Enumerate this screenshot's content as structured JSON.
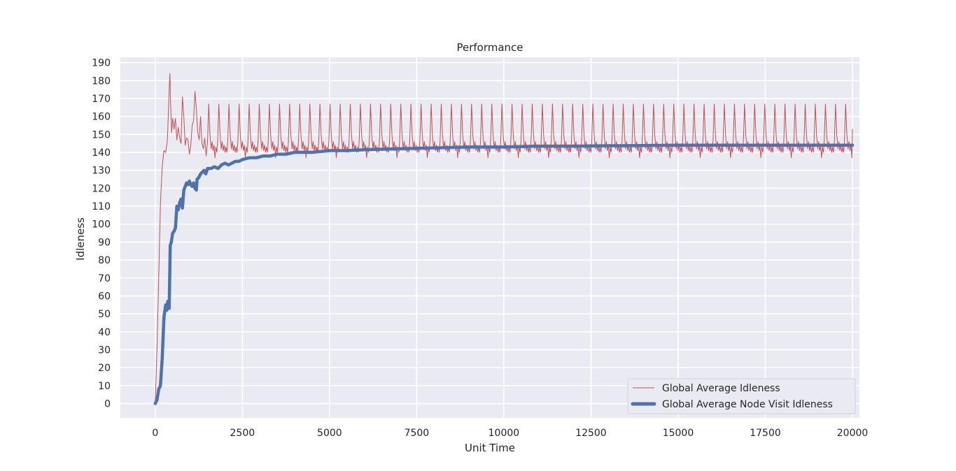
{
  "chart_data": {
    "type": "line",
    "title": "Performance",
    "xlabel": "Unit Time",
    "ylabel": "Idleness",
    "xlim": [
      -1000,
      20200
    ],
    "ylim": [
      -8,
      193
    ],
    "xticks": [
      0,
      2500,
      5000,
      7500,
      10000,
      12500,
      15000,
      17500,
      20000
    ],
    "xtick_labels": [
      "0",
      "2500",
      "5000",
      "7500",
      "10000",
      "12500",
      "15000",
      "17500",
      "20000"
    ],
    "yticks": [
      0,
      10,
      20,
      30,
      40,
      50,
      60,
      70,
      80,
      90,
      100,
      110,
      120,
      130,
      140,
      150,
      160,
      170,
      180,
      190
    ],
    "ytick_labels": [
      "0",
      "10",
      "20",
      "30",
      "40",
      "50",
      "60",
      "70",
      "80",
      "90",
      "100",
      "110",
      "120",
      "130",
      "140",
      "150",
      "160",
      "170",
      "180",
      "190"
    ],
    "grid": true,
    "legend_position": "lower-right",
    "background": "#eaeaf2",
    "series": [
      {
        "name": "Global Average Idleness",
        "color": "#c44e52",
        "style": "thin",
        "x": [
          0,
          50,
          100,
          150,
          200,
          250,
          300,
          350,
          400,
          420,
          440,
          470,
          500,
          540,
          580,
          620,
          660,
          700,
          740,
          780,
          820,
          860,
          900,
          940,
          980,
          1020,
          1060,
          1100,
          1140,
          1180,
          1220,
          1260,
          1300,
          1340,
          1380,
          1420,
          1460,
          1500
        ],
        "y": [
          0,
          30,
          70,
          112,
          132,
          141,
          140,
          147,
          175,
          184,
          168,
          151,
          159,
          153,
          159,
          147,
          154,
          148,
          145,
          171,
          160,
          144,
          148,
          147,
          139,
          144,
          155,
          158,
          174,
          164,
          151,
          147,
          160,
          145,
          142,
          148,
          138,
          146
        ],
        "periodic_after_x": 1500,
        "period": 290,
        "cycle_peak": 167,
        "cycle_base_low": 137,
        "cycle_base_high": 146
      },
      {
        "name": "Global Average Node Visit Idleness",
        "color": "#4c72b0",
        "style": "thick",
        "x": [
          0,
          50,
          100,
          150,
          200,
          250,
          300,
          330,
          360,
          400,
          430,
          460,
          500,
          540,
          580,
          620,
          660,
          700,
          740,
          780,
          820,
          860,
          900,
          940,
          980,
          1020,
          1060,
          1100,
          1140,
          1180,
          1200,
          1250,
          1300,
          1350,
          1400,
          1450,
          1500,
          1600,
          1700,
          1800,
          1900,
          2000,
          2100,
          2200,
          2300,
          2400,
          2500,
          2700,
          2900,
          3100,
          3300,
          3500,
          3750,
          4000,
          4500,
          5000,
          5500,
          6000,
          7000,
          8000,
          9000,
          10000,
          11000,
          12000,
          13000,
          14000,
          15000,
          16000,
          17000,
          18000,
          19000,
          20000
        ],
        "y": [
          0,
          2,
          8,
          10,
          25,
          48,
          55,
          52,
          57,
          53,
          88,
          90,
          95,
          96,
          98,
          110,
          108,
          112,
          114,
          109,
          119,
          121,
          123,
          122,
          124,
          122,
          121,
          123,
          120,
          119,
          125,
          126,
          128,
          129,
          130,
          128,
          131,
          131,
          132,
          131,
          133,
          134,
          133,
          134,
          135,
          135,
          136,
          137,
          137,
          138,
          138,
          139,
          139,
          140,
          140,
          141,
          141,
          141.5,
          142,
          142.5,
          143,
          143,
          143.5,
          143.5,
          143.7,
          143.8,
          144,
          144,
          144,
          144,
          144,
          144
        ]
      }
    ]
  }
}
